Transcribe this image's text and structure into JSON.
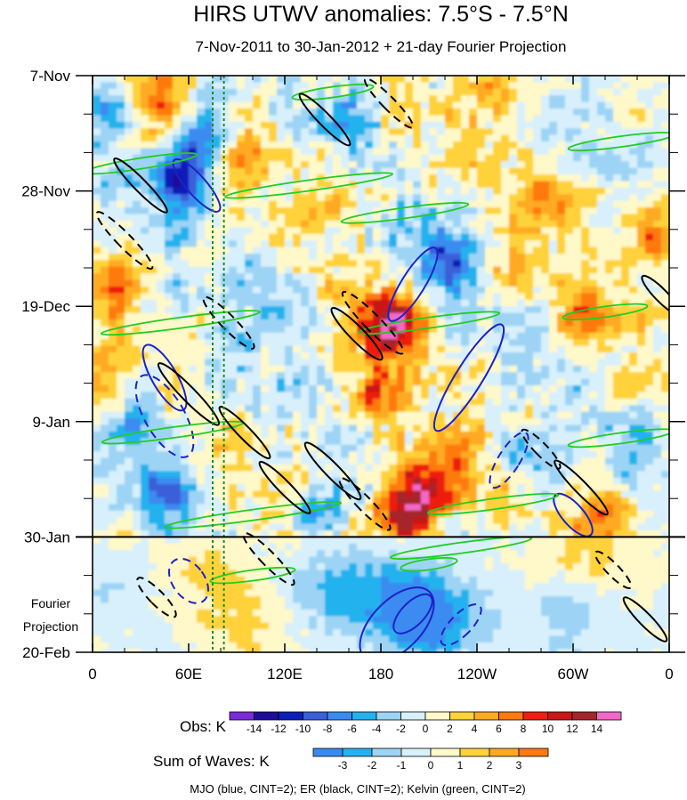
{
  "chart_data": {
    "type": "heatmap",
    "title": "HIRS UTWV anomalies: 7.5°S - 7.5°N",
    "subtitle": "7-Nov-2011 to 30-Jan-2012 + 21-day Fourier Projection",
    "xlabel": "",
    "ylabel": "",
    "x_tick_labels": [
      "0",
      "60E",
      "120E",
      "180",
      "120W",
      "60W",
      "0"
    ],
    "x_tick_lons": [
      0,
      60,
      120,
      180,
      240,
      300,
      360
    ],
    "xlim": [
      0,
      360
    ],
    "y_tick_labels": [
      "7-Nov",
      "28-Nov",
      "19-Dec",
      "9-Jan",
      "30-Jan",
      "20-Feb"
    ],
    "y_tick_days": [
      0,
      21,
      42,
      63,
      84,
      105
    ],
    "ylim_days": [
      0,
      105
    ],
    "projection_start_day": 84,
    "projection_label_line1": "Fourier",
    "projection_label_line2": "Projection",
    "reference_lines_lon": [
      75,
      82
    ],
    "obs_colorbar": {
      "label": "Obs: K",
      "levels": [
        "-14",
        "-12",
        "-10",
        "-8",
        "-6",
        "-4",
        "-2",
        "0",
        "2",
        "4",
        "6",
        "8",
        "10",
        "12",
        "14"
      ],
      "colors": [
        "#7a2ad8",
        "#1d0d99",
        "#0a1fb8",
        "#3a5fd9",
        "#3a8bf0",
        "#23b2ee",
        "#9dd4f5",
        "#d8f0fb",
        "#fff8c8",
        "#ffd23a",
        "#ffaa22",
        "#ff7a10",
        "#ee1f10",
        "#c81818",
        "#a4252c",
        "#f268c6"
      ]
    },
    "waves_colorbar": {
      "label": "Sum of Waves: K",
      "levels": [
        "-3",
        "-2",
        "-1",
        "0",
        "1",
        "2",
        "3"
      ],
      "colors": [
        "#3a8bf0",
        "#23b2ee",
        "#9dd4f5",
        "#d8f0fb",
        "#fff8c8",
        "#ffd23a",
        "#ffaa22",
        "#ff7a10"
      ]
    },
    "wave_legend": "MJO (blue, CINT=2); ER (black, CINT=2); Kelvin (green, CINT=2)",
    "wave_colors": {
      "mjo": "#1a22c8",
      "er": "#000000",
      "kelvin": "#22cc22"
    },
    "anomaly_features": [
      {
        "lon": 185,
        "day": 45,
        "value": 14
      },
      {
        "lon": 195,
        "day": 80,
        "value": 13
      },
      {
        "lon": 205,
        "day": 74,
        "value": 9
      },
      {
        "lon": 175,
        "day": 58,
        "value": 7
      },
      {
        "lon": 230,
        "day": 73,
        "value": 6
      },
      {
        "lon": 320,
        "day": 80,
        "value": 7
      },
      {
        "lon": 310,
        "day": 44,
        "value": 6
      },
      {
        "lon": 350,
        "day": 28,
        "value": 7
      },
      {
        "lon": 5,
        "day": 55,
        "value": 5
      },
      {
        "lon": 40,
        "day": 5,
        "value": 6
      },
      {
        "lon": 100,
        "day": 13,
        "value": 5
      },
      {
        "lon": 255,
        "day": 2,
        "value": 6
      },
      {
        "lon": 290,
        "day": 22,
        "value": 5
      },
      {
        "lon": 10,
        "day": 38,
        "value": 6
      },
      {
        "lon": 150,
        "day": 22,
        "value": 4
      },
      {
        "lon": 262,
        "day": 35,
        "value": 4
      },
      {
        "lon": 55,
        "day": 18,
        "value": -10
      },
      {
        "lon": 70,
        "day": 10,
        "value": -8
      },
      {
        "lon": 220,
        "day": 33,
        "value": -8
      },
      {
        "lon": 45,
        "day": 75,
        "value": -6
      },
      {
        "lon": 140,
        "day": 80,
        "value": -5
      },
      {
        "lon": 30,
        "day": 62,
        "value": -5
      },
      {
        "lon": 10,
        "day": 5,
        "value": -5
      },
      {
        "lon": 115,
        "day": 40,
        "value": -4
      },
      {
        "lon": 270,
        "day": 70,
        "value": -5
      },
      {
        "lon": 340,
        "day": 65,
        "value": -3
      },
      {
        "lon": 160,
        "day": 8,
        "value": -4
      },
      {
        "lon": 85,
        "day": 55,
        "value": -3
      },
      {
        "lon": 195,
        "day": 96,
        "value": -3
      },
      {
        "lon": 215,
        "day": 100,
        "value": -2.5
      },
      {
        "lon": 150,
        "day": 94,
        "value": -2
      },
      {
        "lon": 300,
        "day": 98,
        "value": -1.5
      },
      {
        "lon": 75,
        "day": 91,
        "value": 1.2
      },
      {
        "lon": 310,
        "day": 88,
        "value": 1.5
      },
      {
        "lon": 100,
        "day": 100,
        "value": 1
      },
      {
        "lon": 5,
        "day": 95,
        "value": -1
      }
    ],
    "mjo_contours": [
      {
        "lon": 65,
        "day": 20,
        "dlon": 12,
        "dday": 4,
        "rx": 11,
        "ry": 38,
        "style": "solid"
      },
      {
        "lon": 45,
        "day": 55,
        "dlon": 8,
        "dday": 4,
        "rx": 14,
        "ry": 42,
        "style": "solid"
      },
      {
        "lon": 200,
        "day": 38,
        "dlon": 22,
        "dday": 4,
        "rx": 13,
        "ry": 48,
        "style": "solid"
      },
      {
        "lon": 235,
        "day": 55,
        "dlon": 22,
        "dday": 4,
        "rx": 15,
        "ry": 70,
        "style": "solid"
      },
      {
        "lon": 200,
        "day": 98,
        "dlon": 14,
        "dday": 4,
        "rx": 13,
        "ry": 28,
        "style": "solid"
      },
      {
        "lon": 190,
        "day": 100,
        "dlon": 14,
        "dday": 4,
        "rx": 28,
        "ry": 52,
        "style": "solid"
      },
      {
        "lon": 260,
        "day": 70,
        "dlon": 22,
        "dday": 4,
        "rx": 12,
        "ry": 36,
        "style": "dashed"
      },
      {
        "lon": 45,
        "day": 62,
        "dlon": 8,
        "dday": 4,
        "rx": 22,
        "ry": 52,
        "style": "dashed"
      },
      {
        "lon": 60,
        "day": 92,
        "dlon": 10,
        "dday": 4,
        "rx": 18,
        "ry": 28,
        "style": "dashed"
      },
      {
        "lon": 230,
        "day": 100,
        "dlon": 14,
        "dday": 4,
        "rx": 12,
        "ry": 30,
        "style": "dashed"
      },
      {
        "lon": 300,
        "day": 80,
        "dlon": 12,
        "dday": 4,
        "rx": 12,
        "ry": 30,
        "style": "solid"
      }
    ],
    "er_contours": [
      {
        "lon": 145,
        "day": 8,
        "dlon": -14,
        "dday": 4,
        "rx": 7,
        "ry": 40,
        "style": "solid"
      },
      {
        "lon": 30,
        "day": 20,
        "dlon": -14,
        "dday": 4,
        "rx": 7,
        "ry": 42,
        "style": "solid"
      },
      {
        "lon": 60,
        "day": 58,
        "dlon": -14,
        "dday": 4,
        "rx": 8,
        "ry": 48,
        "style": "solid"
      },
      {
        "lon": 95,
        "day": 65,
        "dlon": -14,
        "dday": 4,
        "rx": 7,
        "ry": 40,
        "style": "solid"
      },
      {
        "lon": 120,
        "day": 75,
        "dlon": -14,
        "dday": 4,
        "rx": 7,
        "ry": 40,
        "style": "solid"
      },
      {
        "lon": 165,
        "day": 47,
        "dlon": -14,
        "dday": 4,
        "rx": 8,
        "ry": 40,
        "style": "solid"
      },
      {
        "lon": 150,
        "day": 72,
        "dlon": -14,
        "dday": 4,
        "rx": 8,
        "ry": 44,
        "style": "solid"
      },
      {
        "lon": 305,
        "day": 75,
        "dlon": -14,
        "dday": 4,
        "rx": 7,
        "ry": 42,
        "style": "solid"
      },
      {
        "lon": 355,
        "day": 40,
        "dlon": -14,
        "dday": 4,
        "rx": 7,
        "ry": 30,
        "style": "solid"
      },
      {
        "lon": 345,
        "day": 99,
        "dlon": -14,
        "dday": 4,
        "rx": 7,
        "ry": 34,
        "style": "solid"
      },
      {
        "lon": 185,
        "day": 5,
        "dlon": -14,
        "dday": 4,
        "rx": 7,
        "ry": 38,
        "style": "dashed"
      },
      {
        "lon": 20,
        "day": 30,
        "dlon": -14,
        "dday": 4,
        "rx": 8,
        "ry": 44,
        "style": "dashed"
      },
      {
        "lon": 85,
        "day": 45,
        "dlon": -14,
        "dday": 4,
        "rx": 8,
        "ry": 40,
        "style": "dashed"
      },
      {
        "lon": 110,
        "day": 88,
        "dlon": -14,
        "dday": 4,
        "rx": 8,
        "ry": 40,
        "style": "dashed"
      },
      {
        "lon": 175,
        "day": 45,
        "dlon": -14,
        "dday": 4,
        "rx": 9,
        "ry": 48,
        "style": "dashed"
      },
      {
        "lon": 170,
        "day": 78,
        "dlon": -14,
        "dday": 4,
        "rx": 8,
        "ry": 40,
        "style": "dashed"
      },
      {
        "lon": 280,
        "day": 68,
        "dlon": -14,
        "dday": 4,
        "rx": 7,
        "ry": 30,
        "style": "dashed"
      },
      {
        "lon": 325,
        "day": 90,
        "dlon": -14,
        "dday": 4,
        "rx": 7,
        "ry": 28,
        "style": "dashed"
      },
      {
        "lon": 40,
        "day": 95,
        "dlon": -14,
        "dday": 4,
        "rx": 8,
        "ry": 30,
        "style": "dashed"
      }
    ],
    "kelvin_contours": [
      {
        "lon": 30,
        "day": 16,
        "dlon": 26,
        "dday": -1.2,
        "rx": 64,
        "ry": 6,
        "style": "solid"
      },
      {
        "lon": 135,
        "day": 20,
        "dlon": 30,
        "dday": -1.2,
        "rx": 95,
        "ry": 6,
        "style": "solid"
      },
      {
        "lon": 195,
        "day": 25,
        "dlon": 30,
        "dday": -1.2,
        "rx": 72,
        "ry": 6,
        "style": "solid"
      },
      {
        "lon": 330,
        "day": 12,
        "dlon": 30,
        "dday": -1.2,
        "rx": 60,
        "ry": 6,
        "style": "solid"
      },
      {
        "lon": 150,
        "day": 3,
        "dlon": 30,
        "dday": -1.2,
        "rx": 46,
        "ry": 6,
        "style": "solid"
      },
      {
        "lon": 55,
        "day": 45,
        "dlon": 30,
        "dday": -1.2,
        "rx": 90,
        "ry": 6,
        "style": "solid"
      },
      {
        "lon": 210,
        "day": 45,
        "dlon": 30,
        "dday": -1.2,
        "rx": 80,
        "ry": 6,
        "style": "solid"
      },
      {
        "lon": 320,
        "day": 43,
        "dlon": 30,
        "dday": -1.2,
        "rx": 48,
        "ry": 6,
        "style": "solid"
      },
      {
        "lon": 50,
        "day": 65,
        "dlon": 30,
        "dday": -1.2,
        "rx": 80,
        "ry": 6,
        "style": "solid"
      },
      {
        "lon": 330,
        "day": 66,
        "dlon": 30,
        "dday": -1.2,
        "rx": 60,
        "ry": 6,
        "style": "solid"
      },
      {
        "lon": 100,
        "day": 80,
        "dlon": 30,
        "dday": -1.2,
        "rx": 100,
        "ry": 6,
        "style": "solid"
      },
      {
        "lon": 250,
        "day": 78,
        "dlon": 30,
        "dday": -1.2,
        "rx": 74,
        "ry": 6,
        "style": "solid"
      },
      {
        "lon": 230,
        "day": 86,
        "dlon": 30,
        "dday": -1.2,
        "rx": 80,
        "ry": 6,
        "style": "solid"
      },
      {
        "lon": 100,
        "day": 91,
        "dlon": 30,
        "dday": -1.2,
        "rx": 48,
        "ry": 6,
        "style": "solid"
      },
      {
        "lon": 210,
        "day": 89,
        "dlon": 30,
        "dday": -1.2,
        "rx": 32,
        "ry": 6,
        "style": "solid"
      }
    ]
  }
}
